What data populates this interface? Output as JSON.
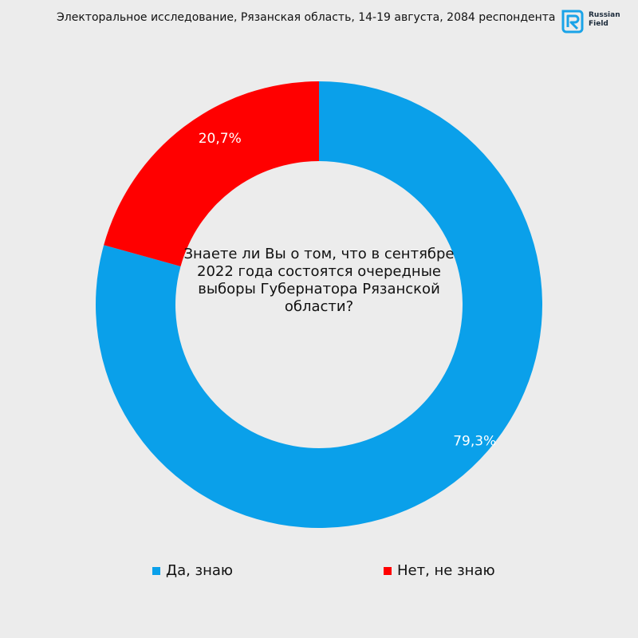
{
  "header": {
    "title": "Электоральное исследование, Рязанская область, 14-19 августа, 2084 респондента"
  },
  "logo": {
    "line1": "Russian",
    "line2": "Field",
    "color": "#1aa3e8"
  },
  "chart_data": {
    "type": "pie",
    "donut": true,
    "center_text": "Знаете ли Вы о том, что в сентябре 2022 года состоятся очередные выборы Губернатора Рязанской области?",
    "slices": [
      {
        "label": "Да, знаю",
        "value": 79.3,
        "display": "79,3%",
        "color": "#0aa0ea"
      },
      {
        "label": "Нет, не знаю",
        "value": 20.7,
        "display": "20,7%",
        "color": "#ff0000"
      }
    ],
    "legend_position": "bottom"
  }
}
